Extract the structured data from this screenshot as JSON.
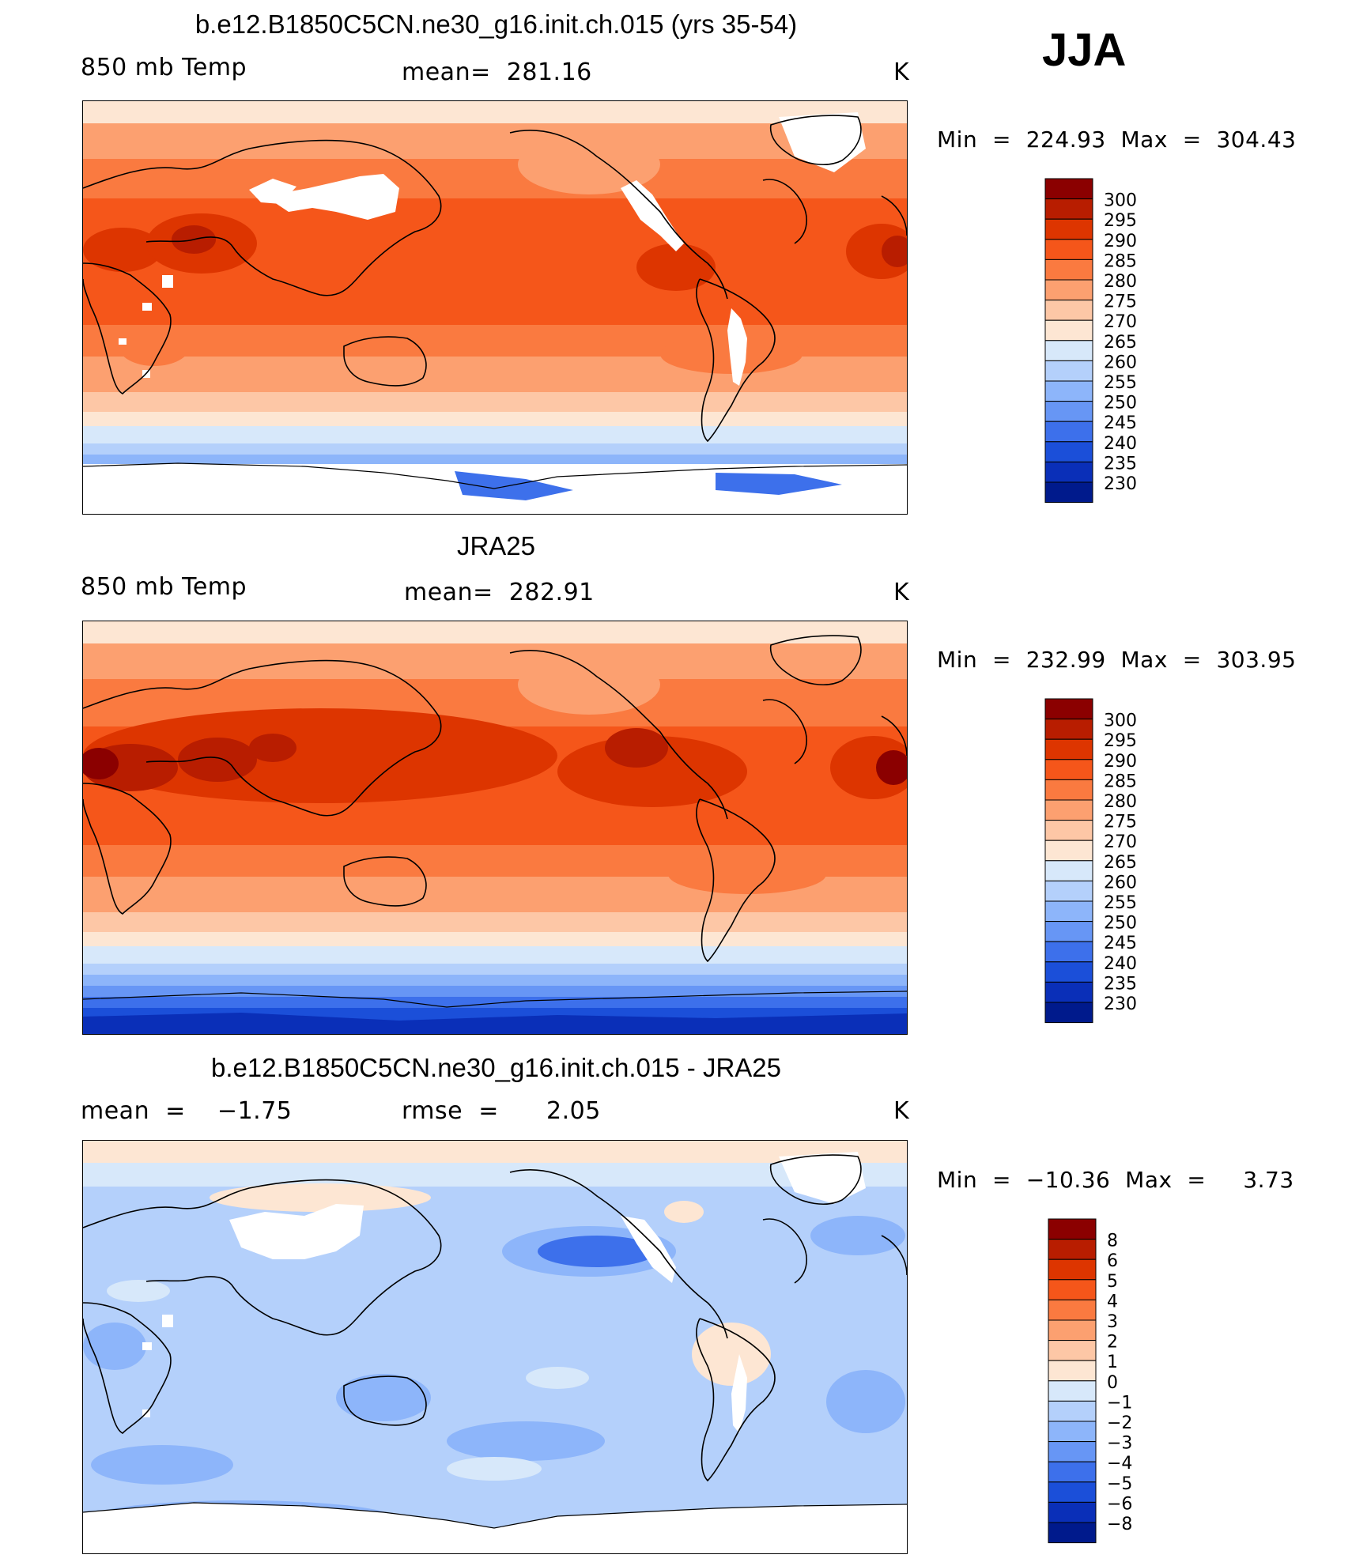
{
  "season": "JJA",
  "panels": [
    {
      "id": "model",
      "title": "b.e12.B1850C5CN.ne30_g16.init.ch.015 (yrs 35-54)",
      "left_label": "850 mb Temp",
      "center_label": "mean=  281.16",
      "units": "K",
      "minmax": "Min  =  224.93  Max  =  304.43",
      "colorbar_labels": [
        "300",
        "295",
        "290",
        "285",
        "280",
        "275",
        "270",
        "265",
        "260",
        "255",
        "250",
        "245",
        "240",
        "235",
        "230"
      ]
    },
    {
      "id": "obs",
      "title": "JRA25",
      "left_label": "850 mb Temp",
      "center_label": "mean=  282.91",
      "units": "K",
      "minmax": "Min  =  232.99  Max  =  303.95",
      "colorbar_labels": [
        "300",
        "295",
        "290",
        "285",
        "280",
        "275",
        "270",
        "265",
        "260",
        "255",
        "250",
        "245",
        "240",
        "235",
        "230"
      ]
    },
    {
      "id": "diff",
      "title": "b.e12.B1850C5CN.ne30_g16.init.ch.015 - JRA25",
      "left_label": "mean  =    −1.75",
      "center_label": "rmse  =      2.05",
      "units": "K",
      "minmax": "Min  =  −10.36  Max  =     3.73",
      "colorbar_labels": [
        "8",
        "6",
        "5",
        "4",
        "3",
        "2",
        "1",
        "0",
        "−1",
        "−2",
        "−3",
        "−4",
        "−5",
        "−6",
        "−8"
      ]
    }
  ],
  "colors": {
    "abs_scale": [
      "#8b0000",
      "#b81d00",
      "#dd3500",
      "#f5561a",
      "#fa7a40",
      "#fca070",
      "#fdc7a6",
      "#fde6d3",
      "#d7e8fa",
      "#b4d0fb",
      "#8db5fa",
      "#6796f5",
      "#3d70eb",
      "#1b4fd9",
      "#0a2fb8",
      "#001a8c"
    ],
    "diff_scale": [
      "#8b0000",
      "#b81d00",
      "#dd3500",
      "#f5561a",
      "#fa7a40",
      "#fca070",
      "#fdc7a6",
      "#fde6d3",
      "#d7e8fa",
      "#b4d0fb",
      "#8db5fa",
      "#6796f5",
      "#3d70eb",
      "#1b4fd9",
      "#0a2fb8",
      "#001a8c"
    ]
  }
}
